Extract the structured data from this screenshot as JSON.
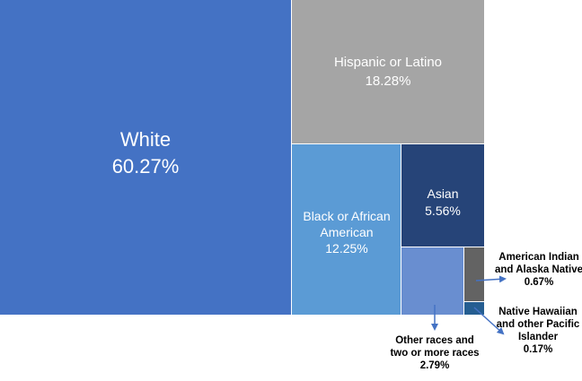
{
  "chart_data": {
    "type": "treemap",
    "series": [
      {
        "name": "White",
        "value": 60.27,
        "value_label": "60.27%",
        "color": "#4472C4"
      },
      {
        "name": "Hispanic or Latino",
        "value": 18.28,
        "value_label": "18.28%",
        "color": "#A5A5A5"
      },
      {
        "name": "Black or African American",
        "value": 12.25,
        "value_label": "12.25%",
        "color": "#5B9BD5"
      },
      {
        "name": "Asian",
        "value": 5.56,
        "value_label": "5.56%",
        "color": "#264478"
      },
      {
        "name": "Other races and two or more races",
        "value": 2.79,
        "value_label": "2.79%",
        "color": "#698ED0"
      },
      {
        "name": "American Indian and Alaska Native",
        "value": 0.67,
        "value_label": "0.67%",
        "color": "#636363"
      },
      {
        "name": "Native Hawaiian and other Pacific Islander",
        "value": 0.17,
        "value_label": "0.17%",
        "color": "#255E91"
      }
    ]
  },
  "colors": {
    "annotation_arrow": "#4472C4",
    "label_light": "#FFFFFF",
    "label_dark": "#000000",
    "gap": "#FFFFFF"
  }
}
